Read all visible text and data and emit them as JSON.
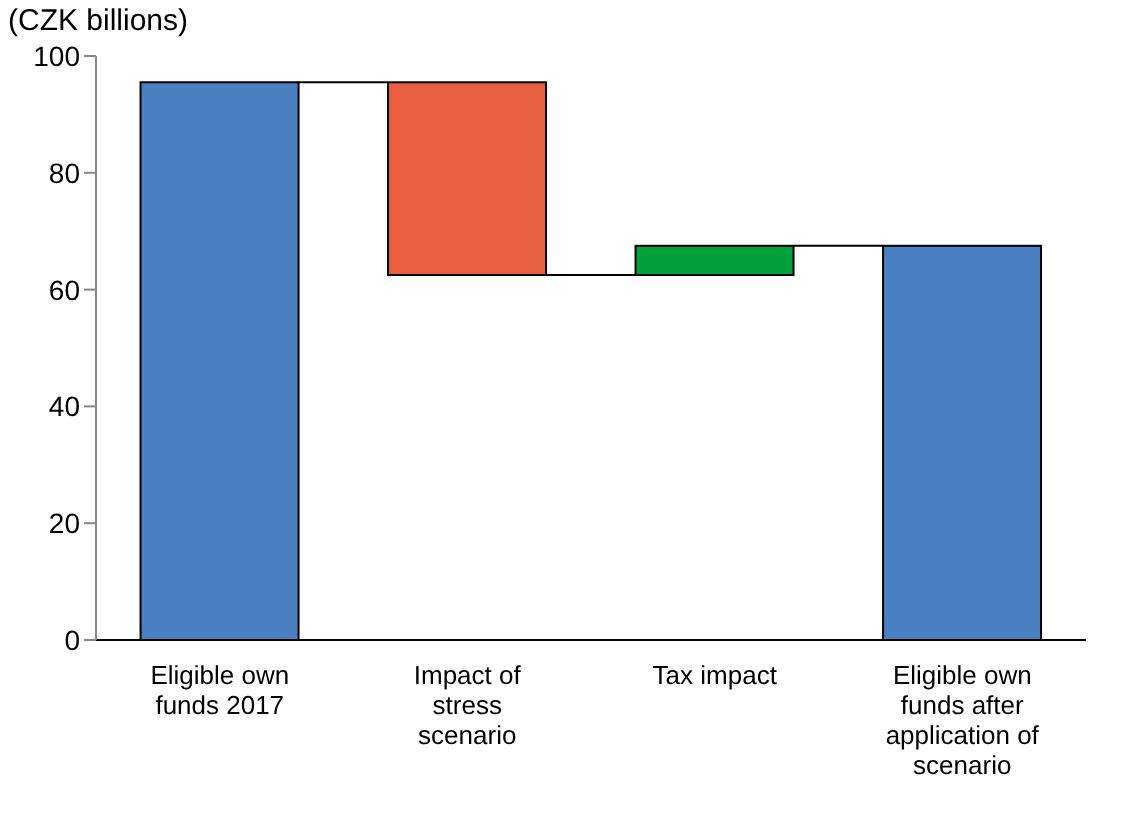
{
  "chart_data": {
    "type": "bar",
    "title": "(CZK billions)",
    "categories": [
      "Eligible own funds 2017",
      "Impact of stress scenario",
      "Tax impact",
      "Eligible own funds after application of scenario"
    ],
    "values": [
      95.5,
      -33,
      5,
      67.5
    ],
    "base": [
      0,
      95.5,
      62.5,
      0
    ],
    "colors": [
      "#4a7fc1",
      "#e86040",
      "#00a13a",
      "#4a7fc1"
    ],
    "ylim": [
      0,
      100
    ],
    "yticks": [
      0,
      20,
      40,
      60,
      80,
      100
    ]
  }
}
